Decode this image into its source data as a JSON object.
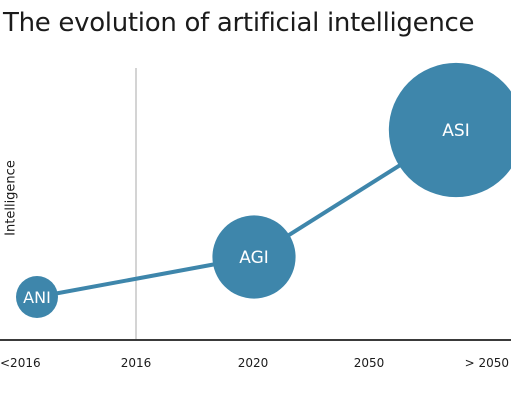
{
  "chart_data": {
    "type": "bubble",
    "title": "The evolution of artificial intelligence",
    "xlabel": "",
    "ylabel": "Intelligence",
    "categories": [
      "<2016",
      "2016",
      "2020",
      "2050",
      "> 2050"
    ],
    "reference_line": "2016",
    "colors": {
      "bubble": "#3e86ab",
      "line": "#3e86ab",
      "axis": "#3a3a3a",
      "divider": "#b7b7b7"
    },
    "points": [
      {
        "label": "ANI",
        "x": "<2016",
        "y": 1,
        "size": 1
      },
      {
        "label": "AGI",
        "x": "2020",
        "y": 2,
        "size": 2
      },
      {
        "label": "ASI",
        "x": "> 2050",
        "y": 7.5,
        "size": 5
      }
    ],
    "y_range": [
      0,
      10
    ]
  }
}
